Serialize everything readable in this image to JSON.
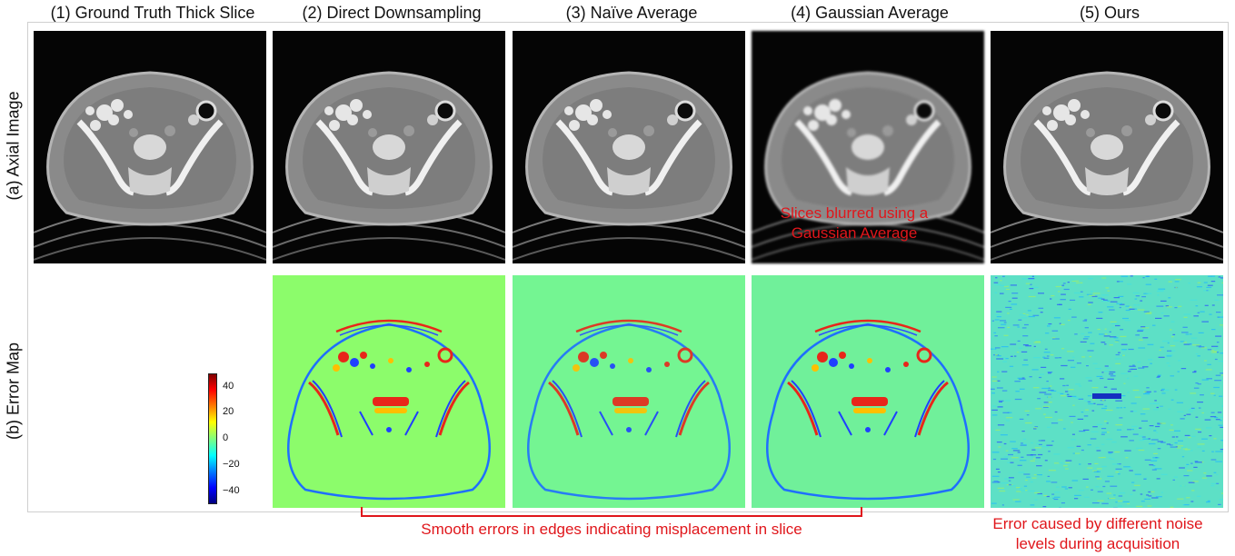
{
  "columns": [
    {
      "id": "gt",
      "title": "(1) Ground Truth Thick Slice"
    },
    {
      "id": "direct",
      "title": "(2) Direct Downsampling"
    },
    {
      "id": "naive",
      "title": "(3) Naïve Average"
    },
    {
      "id": "gauss",
      "title": "(4) Gaussian Average"
    },
    {
      "id": "ours",
      "title": "(5) Ours"
    }
  ],
  "rows": {
    "a": "(a) Axial Image",
    "b": "(b) Error Map"
  },
  "colorbar": {
    "ticks": [
      "40",
      "20",
      "0",
      "−20",
      "−40"
    ],
    "colors": {
      "high": "#7f0000",
      "mid": "#7fff7f",
      "low": "#00007f"
    }
  },
  "annotations": {
    "gauss_blur": "Slices blurred using a Gaussian Average",
    "edges": "Smooth errors in edges indicating misplacement in slice",
    "noise_line1": "Error caused by different noise",
    "noise_line2": "levels during acquisition"
  },
  "colors": {
    "annotation": "#e0161b"
  }
}
